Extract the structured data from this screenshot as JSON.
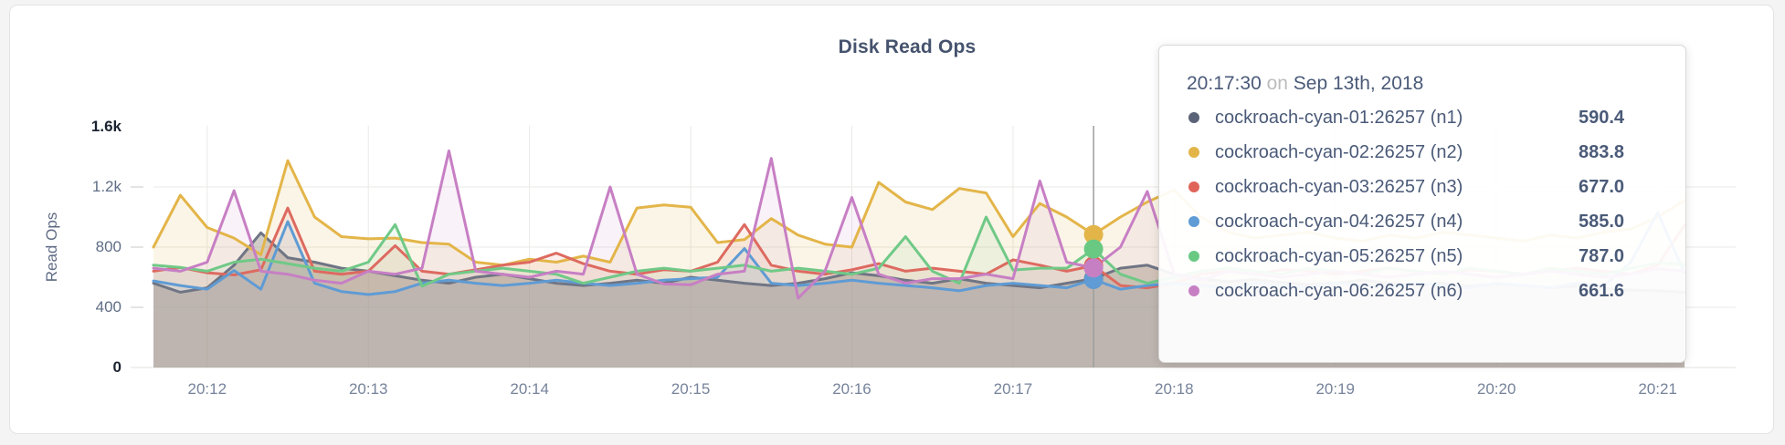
{
  "page": {
    "name": "Disk Read Ops metrics panel"
  },
  "chart_data": {
    "type": "area",
    "title": "Disk Read Ops",
    "ylabel": "Read Ops",
    "xlabel": "",
    "ylim": [
      0,
      1600
    ],
    "grid": true,
    "legend_position": "tooltip-only",
    "y_ticks": [
      {
        "value": 0,
        "label": "0",
        "emphasis": true
      },
      {
        "value": 400,
        "label": "400",
        "emphasis": false
      },
      {
        "value": 800,
        "label": "800",
        "emphasis": false
      },
      {
        "value": 1200,
        "label": "1.2k",
        "emphasis": false
      },
      {
        "value": 1600,
        "label": "1.6k",
        "emphasis": true
      }
    ],
    "x_minute_ticks": [
      "20:12",
      "20:13",
      "20:14",
      "20:15",
      "20:16",
      "20:17",
      "20:18",
      "20:19",
      "20:20",
      "20:21"
    ],
    "x": [
      "20:11:40",
      "20:11:50",
      "20:12:00",
      "20:12:10",
      "20:12:20",
      "20:12:30",
      "20:12:40",
      "20:12:50",
      "20:13:00",
      "20:13:10",
      "20:13:20",
      "20:13:30",
      "20:13:40",
      "20:13:50",
      "20:14:00",
      "20:14:10",
      "20:14:20",
      "20:14:30",
      "20:14:40",
      "20:14:50",
      "20:15:00",
      "20:15:10",
      "20:15:20",
      "20:15:30",
      "20:15:40",
      "20:15:50",
      "20:16:00",
      "20:16:10",
      "20:16:20",
      "20:16:30",
      "20:16:40",
      "20:16:50",
      "20:17:00",
      "20:17:10",
      "20:17:20",
      "20:17:30",
      "20:17:40",
      "20:17:50",
      "20:18:00",
      "20:18:10",
      "20:18:20",
      "20:18:30",
      "20:18:40",
      "20:18:50",
      "20:19:00",
      "20:19:10",
      "20:19:20",
      "20:19:30",
      "20:19:40",
      "20:19:50",
      "20:20:00",
      "20:20:10",
      "20:20:20",
      "20:20:30",
      "20:20:40",
      "20:20:50",
      "20:21:00",
      "20:21:10"
    ],
    "series": [
      {
        "name": "cockroach-cyan-01:26257 (n1)",
        "color": "#6f7584",
        "dot_color": "#5b6378",
        "fill_color": "#9a9287",
        "fill_opacity": 0.45,
        "values": [
          560,
          500,
          530,
          680,
          895,
          730,
          700,
          660,
          640,
          610,
          580,
          560,
          600,
          620,
          590,
          560,
          545,
          560,
          580,
          560,
          600,
          580,
          560,
          545,
          560,
          590,
          630,
          610,
          580,
          560,
          590,
          560,
          545,
          530,
          560,
          590.4,
          660,
          680,
          620,
          590,
          570,
          585,
          565,
          550,
          560,
          580,
          560,
          545,
          560,
          540,
          555,
          545,
          530,
          540,
          525,
          515,
          510,
          500
        ]
      },
      {
        "name": "cockroach-cyan-02:26257 (n2)",
        "color": "#e3b549",
        "dot_color": "#e3b549",
        "fill_color": "#e3b549",
        "fill_opacity": 0.13,
        "values": [
          800,
          1145,
          930,
          860,
          750,
          1375,
          1000,
          870,
          855,
          860,
          830,
          820,
          700,
          680,
          720,
          700,
          740,
          700,
          1060,
          1080,
          1065,
          830,
          850,
          990,
          880,
          820,
          800,
          1230,
          1100,
          1050,
          1190,
          1160,
          870,
          1090,
          1000,
          883.8,
          1000,
          1100,
          1180,
          1000,
          900,
          860,
          880,
          900,
          860,
          840,
          880,
          860,
          900,
          880,
          860,
          840,
          880,
          860,
          900,
          920,
          1000,
          1110
        ]
      },
      {
        "name": "cockroach-cyan-03:26257 (n3)",
        "color": "#dd6a60",
        "dot_color": "#e0635a",
        "fill_color": "#dd6a60",
        "fill_opacity": 0.1,
        "values": [
          640,
          665,
          630,
          615,
          650,
          1060,
          640,
          620,
          640,
          810,
          640,
          620,
          650,
          680,
          700,
          760,
          690,
          640,
          620,
          650,
          640,
          700,
          950,
          680,
          640,
          620,
          650,
          690,
          640,
          660,
          640,
          620,
          715,
          680,
          640,
          677,
          545,
          530,
          560,
          620,
          640,
          620,
          650,
          640,
          620,
          640,
          660,
          640,
          620,
          650,
          640,
          620,
          640,
          660,
          640,
          620,
          680,
          945
        ]
      },
      {
        "name": "cockroach-cyan-04:26257 (n4)",
        "color": "#5f9bd4",
        "dot_color": "#5f9bd4",
        "fill_color": "#5f9bd4",
        "fill_opacity": 0.1,
        "values": [
          575,
          545,
          520,
          645,
          520,
          970,
          560,
          505,
          485,
          505,
          560,
          580,
          560,
          545,
          560,
          580,
          560,
          545,
          560,
          580,
          590,
          600,
          790,
          560,
          545,
          560,
          580,
          560,
          545,
          530,
          510,
          545,
          560,
          545,
          530,
          585,
          520,
          545,
          560,
          545,
          530,
          560,
          545,
          530,
          560,
          545,
          530,
          560,
          545,
          530,
          560,
          545,
          530,
          560,
          545,
          700,
          1030,
          630
        ]
      },
      {
        "name": "cockroach-cyan-05:26257 (n5)",
        "color": "#70c987",
        "dot_color": "#69c983",
        "fill_color": "#70c987",
        "fill_opacity": 0.1,
        "values": [
          680,
          665,
          640,
          700,
          720,
          690,
          660,
          640,
          700,
          950,
          540,
          620,
          640,
          660,
          640,
          620,
          560,
          600,
          640,
          660,
          640,
          660,
          680,
          640,
          660,
          640,
          620,
          660,
          870,
          640,
          560,
          1000,
          648,
          660,
          660,
          787,
          620,
          560,
          600,
          640,
          660,
          640,
          620,
          660,
          640,
          620,
          660,
          640,
          620,
          660,
          640,
          620,
          660,
          640,
          620,
          660,
          695,
          685
        ]
      },
      {
        "name": "cockroach-cyan-06:26257 (n6)",
        "color": "#c77fc4",
        "dot_color": "#c77fc4",
        "fill_color": "#c77fc4",
        "fill_opacity": 0.1,
        "values": [
          660,
          640,
          700,
          1175,
          640,
          620,
          580,
          560,
          640,
          620,
          660,
          1440,
          640,
          620,
          600,
          640,
          620,
          1200,
          620,
          555,
          550,
          620,
          640,
          1390,
          460,
          640,
          1130,
          620,
          560,
          590,
          590,
          620,
          590,
          1240,
          700,
          661.6,
          800,
          1170,
          620,
          580,
          640,
          620,
          600,
          620,
          640,
          620,
          600,
          620,
          640,
          620,
          600,
          620,
          640,
          620,
          600,
          620,
          655,
          640
        ]
      }
    ]
  },
  "tooltip": {
    "time": "20:17:30",
    "separator": "on",
    "date": "Sep 13th, 2018",
    "hover_time": "20:17:30",
    "rows": [
      {
        "label": "cockroach-cyan-01:26257 (n1)",
        "value": "590.4",
        "color": "#5b6378"
      },
      {
        "label": "cockroach-cyan-02:26257 (n2)",
        "value": "883.8",
        "color": "#e3b549"
      },
      {
        "label": "cockroach-cyan-03:26257 (n3)",
        "value": "677.0",
        "color": "#e0635a"
      },
      {
        "label": "cockroach-cyan-04:26257 (n4)",
        "value": "585.0",
        "color": "#5f9bd4"
      },
      {
        "label": "cockroach-cyan-05:26257 (n5)",
        "value": "787.0",
        "color": "#69c983"
      },
      {
        "label": "cockroach-cyan-06:26257 (n6)",
        "value": "661.6",
        "color": "#c77fc4"
      }
    ]
  }
}
